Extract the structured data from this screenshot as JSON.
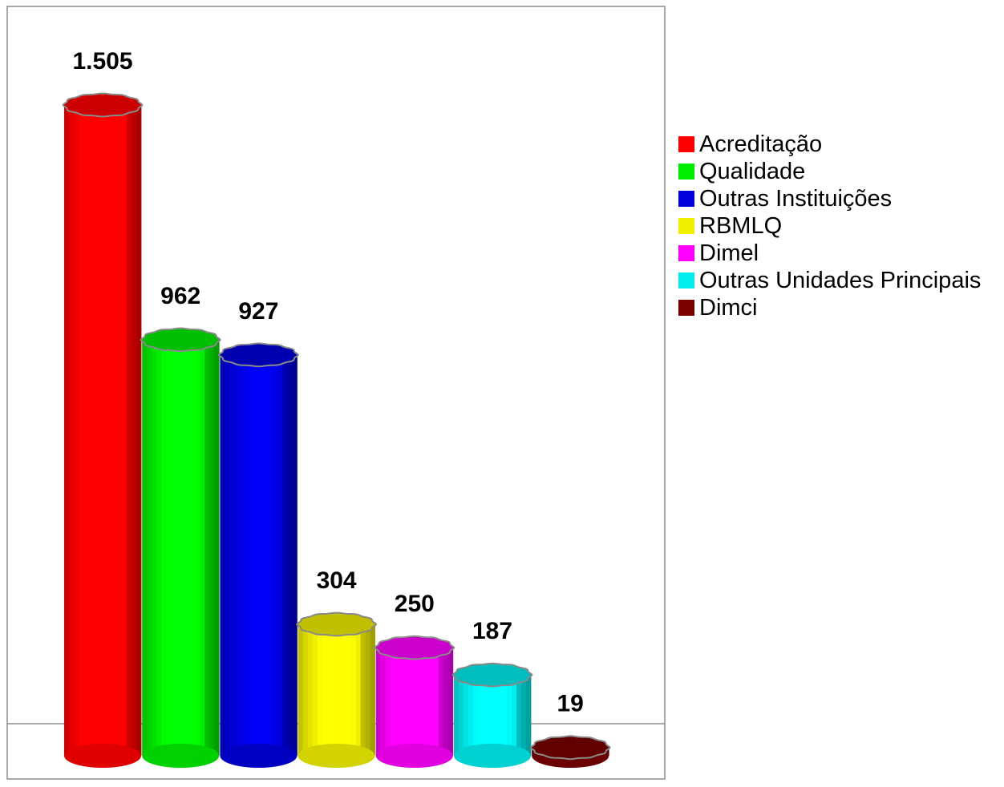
{
  "chart_data": {
    "type": "bar",
    "style": "3d-cylinder",
    "categories": [
      "Acreditação",
      "Qualidade",
      "Outras Instituições",
      "RBMLQ",
      "Dimel",
      "Outras Unidades Principais",
      "Dimci"
    ],
    "values": [
      1505,
      962,
      927,
      304,
      250,
      187,
      19
    ],
    "value_labels": [
      "1.505",
      "962",
      "927",
      "304",
      "250",
      "187",
      "19"
    ],
    "colors": [
      "#ff0000",
      "#00ee00",
      "#0000dd",
      "#f0f000",
      "#ff00ff",
      "#00eeee",
      "#7a0000"
    ],
    "title": "",
    "xlabel": "",
    "ylabel": "",
    "ylim": [
      0,
      1505
    ],
    "grid": false,
    "legend_position": "right"
  },
  "legend": {
    "items": [
      {
        "label": "Acreditação",
        "color": "#ff0000"
      },
      {
        "label": "Qualidade",
        "color": "#00ee00"
      },
      {
        "label": "Outras Instituições",
        "color": "#0000dd"
      },
      {
        "label": "RBMLQ",
        "color": "#f0f000"
      },
      {
        "label": "Dimel",
        "color": "#ff00ff"
      },
      {
        "label": "Outras Unidades Principais",
        "color": "#00eeee"
      },
      {
        "label": "Dimci",
        "color": "#7a0000"
      }
    ]
  }
}
